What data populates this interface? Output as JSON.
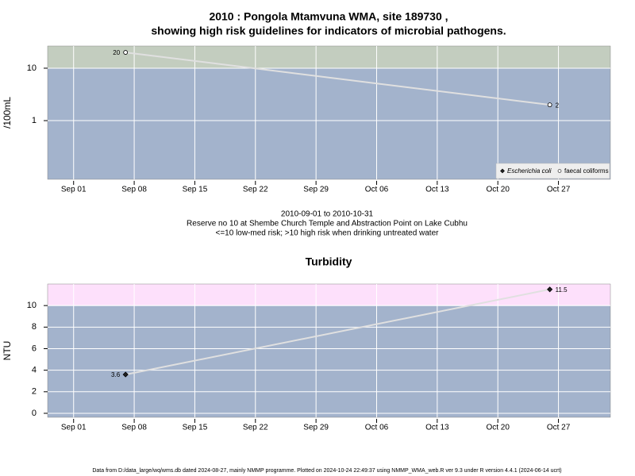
{
  "chart_data": [
    {
      "type": "scatter",
      "title": "2010 : Pongola Mtamvuna WMA, site 189730 ,",
      "subtitle": "showing high risk guidelines for indicators of microbial pathogens.",
      "captions": [
        "2010-09-01 to 2010-10-31",
        "Reserve no 10 at Shembe Church Temple and Abstraction Point on Lake Cubhu",
        "<=10 low-med risk; >10 high risk when drinking untreated water"
      ],
      "y_label": "/100mL",
      "log_y": true,
      "x": [
        "Sep 07",
        "Oct 26"
      ],
      "series": [
        {
          "name": "Escherichia coli",
          "marker": "diamond",
          "color": "#222222",
          "values": [
            null,
            null
          ]
        },
        {
          "name": "faecal coliforms",
          "marker": "circle",
          "color": "#ffffff",
          "values": [
            20,
            2
          ]
        }
      ],
      "xlim": [
        "Aug 29",
        "Nov 02"
      ],
      "xticks": [
        "Sep 01",
        "Sep 08",
        "Sep 15",
        "Sep 22",
        "Sep 29",
        "Oct 06",
        "Oct 13",
        "Oct 20",
        "Oct 27"
      ],
      "ylim": [
        0.076,
        26.5
      ],
      "yticks": [
        1,
        10
      ],
      "threshold": 10,
      "below_color": "#a3b3cc",
      "above_color": "#c3cdbf",
      "line_color": "#e0e0e0",
      "grid": true,
      "legend": "bottom-right"
    },
    {
      "type": "scatter",
      "title": "Turbidity",
      "y_label": "NTU",
      "log_y": false,
      "x": [
        "Sep 07",
        "Oct 26"
      ],
      "series": [
        {
          "marker": "diamond",
          "color": "#222222",
          "values": [
            3.6,
            11.5
          ]
        }
      ],
      "xlim": [
        "Aug 29",
        "Nov 02"
      ],
      "xticks": [
        "Sep 01",
        "Sep 08",
        "Sep 15",
        "Sep 22",
        "Sep 29",
        "Oct 06",
        "Oct 13",
        "Oct 20",
        "Oct 27"
      ],
      "ylim": [
        -0.37,
        12
      ],
      "yticks": [
        0,
        2,
        4,
        6,
        8,
        10
      ],
      "threshold": 10,
      "below_color": "#a3b3cc",
      "above_color": "#fde0fb",
      "line_color": "#e0e0e0",
      "grid": true
    }
  ],
  "footer": "Data from D:/data_large/wq/wms.db dated 2024-08-27, mainly NMMP programme. Plotted on 2024-10-24 22:49:37 using NMMP_WMA_web.R ver 9.3 under R version 4.4.1 (2024-06-14 ucrt)"
}
